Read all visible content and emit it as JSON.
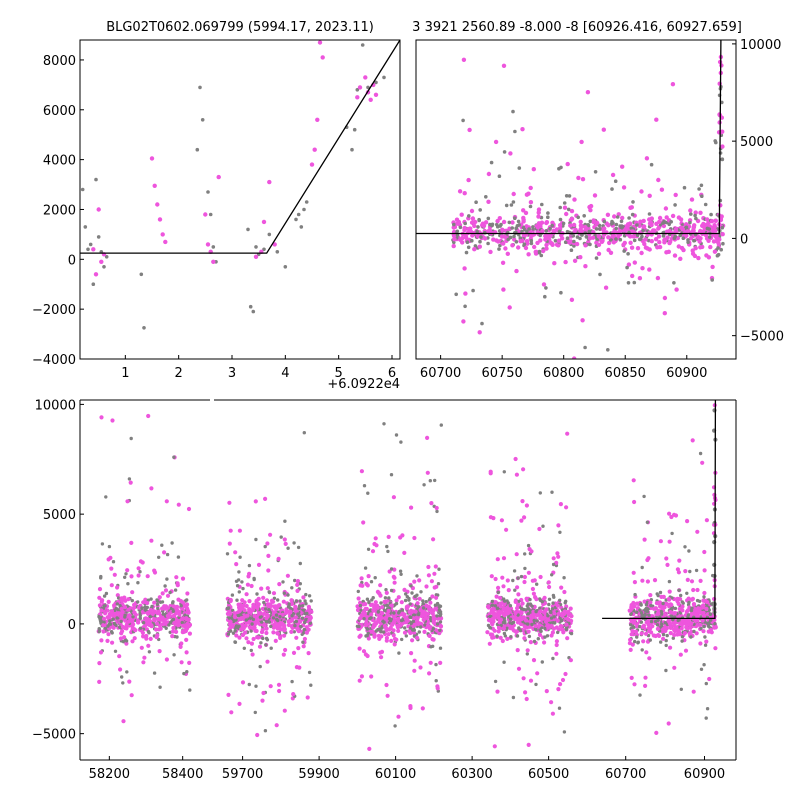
{
  "colors": {
    "gray": "#808080",
    "magenta": "#ee55dd",
    "model": "#000000",
    "frame": "#000000"
  },
  "chart_data": [
    {
      "id": "top-left",
      "type": "scatter",
      "title": "BLG02T0602.069799 (5994.17, 2023.11)",
      "x_offset_label": "+6.0922e4",
      "xlim": [
        0.15,
        6.15
      ],
      "ylim": [
        -4000,
        8800
      ],
      "xticks": [
        "1",
        "2",
        "3",
        "4",
        "5",
        "6"
      ],
      "xtick_values": [
        1,
        2,
        3,
        4,
        5,
        6
      ],
      "yticks": [
        "8000",
        "6000",
        "4000",
        "2000",
        "0",
        "−2000",
        "−4000"
      ],
      "ytick_values": [
        8000,
        6000,
        4000,
        2000,
        0,
        -2000,
        -4000
      ],
      "yaxis_side": "left",
      "model_line": {
        "x": [
          0.15,
          3.65,
          6.15
        ],
        "y": [
          250,
          250,
          8800
        ]
      },
      "series": [
        {
          "name": "gray",
          "points": [
            [
              0.2,
              2800
            ],
            [
              0.25,
              1300
            ],
            [
              0.3,
              400
            ],
            [
              0.35,
              600
            ],
            [
              0.4,
              -1000
            ],
            [
              0.45,
              3200
            ],
            [
              0.5,
              900
            ],
            [
              0.55,
              300
            ],
            [
              0.6,
              -300
            ],
            [
              0.65,
              100
            ],
            [
              1.3,
              -600
            ],
            [
              1.35,
              -2750
            ],
            [
              2.35,
              4400
            ],
            [
              2.4,
              6900
            ],
            [
              2.45,
              5600
            ],
            [
              2.55,
              2700
            ],
            [
              2.6,
              1800
            ],
            [
              2.65,
              500
            ],
            [
              2.7,
              -100
            ],
            [
              3.3,
              1200
            ],
            [
              3.35,
              -1900
            ],
            [
              3.4,
              -2100
            ],
            [
              3.45,
              500
            ],
            [
              3.5,
              200
            ],
            [
              3.6,
              400
            ],
            [
              3.7,
              1000
            ],
            [
              3.85,
              300
            ],
            [
              4.0,
              -300
            ],
            [
              4.2,
              1600
            ],
            [
              4.25,
              1800
            ],
            [
              4.3,
              1300
            ],
            [
              4.35,
              2000
            ],
            [
              4.4,
              2300
            ],
            [
              5.15,
              5300
            ],
            [
              5.25,
              4400
            ],
            [
              5.3,
              5200
            ],
            [
              5.35,
              6800
            ],
            [
              5.45,
              8600
            ],
            [
              5.55,
              6900
            ],
            [
              5.7,
              7100
            ],
            [
              5.85,
              7300
            ]
          ]
        },
        {
          "name": "magenta",
          "points": [
            [
              0.4,
              400
            ],
            [
              0.45,
              -600
            ],
            [
              0.5,
              2000
            ],
            [
              0.55,
              -100
            ],
            [
              0.6,
              200
            ],
            [
              1.5,
              4050
            ],
            [
              1.55,
              2950
            ],
            [
              1.6,
              2200
            ],
            [
              1.65,
              1600
            ],
            [
              1.7,
              1000
            ],
            [
              1.75,
              700
            ],
            [
              2.5,
              1800
            ],
            [
              2.55,
              600
            ],
            [
              2.6,
              300
            ],
            [
              2.65,
              -100
            ],
            [
              2.75,
              3300
            ],
            [
              3.45,
              100
            ],
            [
              3.55,
              300
            ],
            [
              3.6,
              1500
            ],
            [
              3.7,
              3100
            ],
            [
              3.8,
              600
            ],
            [
              4.5,
              3800
            ],
            [
              4.55,
              4400
            ],
            [
              4.6,
              5600
            ],
            [
              4.65,
              8700
            ],
            [
              4.7,
              8100
            ],
            [
              5.35,
              6500
            ],
            [
              5.4,
              6900
            ],
            [
              5.5,
              7300
            ],
            [
              5.55,
              6700
            ],
            [
              5.6,
              6400
            ],
            [
              5.65,
              7000
            ],
            [
              5.7,
              6600
            ]
          ]
        }
      ]
    },
    {
      "id": "top-right",
      "type": "scatter",
      "title": "3 3921 2560.89 -8.000 -8 [60926.416, 60927.659]",
      "xlim": [
        60680,
        60940
      ],
      "ylim": [
        -6200,
        10200
      ],
      "xticks": [
        "60700",
        "60750",
        "60800",
        "60850",
        "60900"
      ],
      "xtick_values": [
        60700,
        60750,
        60800,
        60850,
        60900
      ],
      "yticks": [
        "10000",
        "5000",
        "0",
        "−5000"
      ],
      "ytick_values": [
        10000,
        5000,
        0,
        -5000
      ],
      "yaxis_side": "right",
      "model_line": {
        "x": [
          60680,
          60926.4,
          60927.7
        ],
        "y": [
          250,
          250,
          10200
        ]
      },
      "observing_season": {
        "x_start": 60710,
        "x_end": 60930,
        "core_amplitude": 500,
        "outlier_amplitude": 5500
      }
    },
    {
      "id": "bottom",
      "type": "scatter",
      "x_breaks": true,
      "ylim": [
        -6200,
        10200
      ],
      "yticks": [
        "10000",
        "5000",
        "0",
        "−5000"
      ],
      "ytick_values": [
        10000,
        5000,
        0,
        -5000
      ],
      "yaxis_side": "left",
      "segments": [
        {
          "xlim": [
            58120,
            58480
          ],
          "xticks": [
            "58200",
            "58400"
          ],
          "xtick_values": [
            58200,
            58400
          ],
          "season": [
            58170,
            58420
          ]
        },
        {
          "xlim": [
            59620,
            60650
          ],
          "xticks": [
            "59700",
            "59900",
            "60100",
            "60300",
            "60500"
          ],
          "xtick_values": [
            59700,
            59900,
            60100,
            60300,
            60500
          ],
          "seasons": [
            [
              59660,
              59880
            ],
            [
              60000,
              60220
            ],
            [
              60340,
              60560
            ]
          ]
        },
        {
          "xlim": [
            60650,
            60980
          ],
          "xticks": [
            "60700",
            "60900"
          ],
          "xtick_values": [
            60700,
            60900
          ],
          "season": [
            60710,
            60930
          ]
        }
      ],
      "model_line": {
        "x": [
          60640,
          60926.4,
          60927.7
        ],
        "y": [
          250,
          250,
          10200
        ]
      }
    }
  ]
}
